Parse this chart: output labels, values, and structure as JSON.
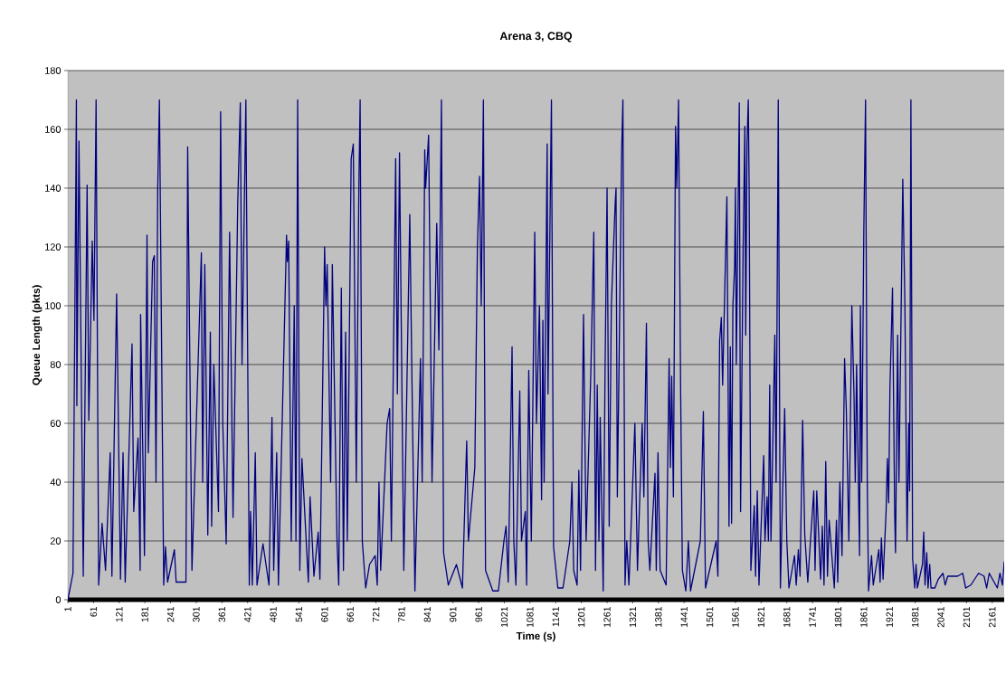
{
  "chart_data": {
    "type": "line",
    "title": "Arena 3, CBQ",
    "xlabel": "Time (s)",
    "ylabel": "Queue Length (pkts)",
    "xlim": [
      1,
      2189
    ],
    "ylim": [
      0,
      180
    ],
    "xticks": [
      1,
      61,
      121,
      181,
      241,
      301,
      361,
      421,
      481,
      541,
      601,
      661,
      721,
      781,
      841,
      901,
      961,
      1021,
      1081,
      1141,
      1201,
      1261,
      1321,
      1381,
      1441,
      1501,
      1561,
      1621,
      1681,
      1741,
      1801,
      1861,
      1921,
      1981,
      2041,
      2101,
      2161
    ],
    "yticks": [
      0,
      20,
      40,
      60,
      80,
      100,
      120,
      140,
      160,
      180
    ],
    "grid": "y",
    "marker": "none",
    "line_style": "solid",
    "series": [
      {
        "color": "#000080",
        "x": [
          1,
          13,
          21,
          22,
          27,
          37,
          46,
          50,
          58,
          62,
          67,
          73,
          81,
          89,
          100,
          104,
          115,
          124,
          130,
          135,
          151,
          155,
          165,
          170,
          171,
          180,
          186,
          189,
          199,
          203,
          207,
          211,
          215,
          225,
          229,
          234,
          250,
          254,
          277,
          281,
          291,
          313,
          316,
          321,
          328,
          334,
          337,
          342,
          353,
          358,
          363,
          371,
          379,
          387,
          398,
          404,
          408,
          417,
          425,
          428,
          432,
          439,
          443,
          457,
          471,
          478,
          482,
          489,
          493,
          505,
          512,
          514,
          517,
          523,
          530,
          534,
          538,
          543,
          548,
          563,
          567,
          576,
          586,
          590,
          601,
          604,
          607,
          615,
          619,
          630,
          634,
          640,
          645,
          650,
          654,
          663,
          668,
          675,
          681,
          684,
          689,
          697,
          706,
          719,
          724,
          728,
          732,
          747,
          753,
          757,
          767,
          771,
          776,
          786,
          800,
          806,
          812,
          825,
          829,
          835,
          837,
          844,
          852,
          863,
          868,
          874,
          879,
          890,
          909,
          923,
          933,
          937,
          952,
          958,
          963,
          967,
          972,
          977,
          994,
          1007,
          1020,
          1025,
          1030,
          1039,
          1043,
          1048,
          1057,
          1061,
          1070,
          1073,
          1078,
          1084,
          1092,
          1096,
          1103,
          1108,
          1111,
          1114,
          1121,
          1123,
          1131,
          1136,
          1146,
          1158,
          1169,
          1174,
          1179,
          1183,
          1191,
          1195,
          1199,
          1206,
          1212,
          1223,
          1230,
          1234,
          1238,
          1242,
          1245,
          1252,
          1256,
          1261,
          1266,
          1271,
          1280,
          1282,
          1285,
          1289,
          1295,
          1298,
          1303,
          1307,
          1312,
          1316,
          1326,
          1332,
          1343,
          1347,
          1353,
          1357,
          1361,
          1373,
          1376,
          1380,
          1385,
          1399,
          1406,
          1409,
          1412,
          1416,
          1421,
          1424,
          1428,
          1433,
          1437,
          1445,
          1451,
          1456,
          1479,
          1486,
          1491,
          1516,
          1520,
          1524,
          1528,
          1531,
          1541,
          1546,
          1549,
          1552,
          1555,
          1559,
          1561,
          1563,
          1570,
          1573,
          1579,
          1583,
          1585,
          1588,
          1591,
          1593,
          1597,
          1605,
          1608,
          1612,
          1616,
          1627,
          1630,
          1635,
          1638,
          1641,
          1644,
          1653,
          1656,
          1661,
          1666,
          1676,
          1681,
          1686,
          1699,
          1703,
          1708,
          1712,
          1718,
          1723,
          1730,
          1744,
          1747,
          1751,
          1760,
          1764,
          1768,
          1772,
          1776,
          1780,
          1792,
          1797,
          1800,
          1805,
          1810,
          1816,
          1820,
          1826,
          1833,
          1838,
          1841,
          1844,
          1851,
          1853,
          1856,
          1861,
          1865,
          1869,
          1872,
          1879,
          1883,
          1896,
          1899,
          1902,
          1906,
          1913,
          1916,
          1919,
          1922,
          1928,
          1933,
          1935,
          1940,
          1943,
          1949,
          1952,
          1957,
          1962,
          1966,
          1968,
          1971,
          1975,
          1980,
          1983,
          1986,
          1998,
          2001,
          2004,
          2008,
          2011,
          2015,
          2018,
          2027,
          2035,
          2046,
          2051,
          2057,
          2069,
          2080,
          2092,
          2099,
          2111,
          2129,
          2142,
          2148,
          2154,
          2173,
          2179,
          2185,
          2189
        ],
        "values": [
          0,
          9,
          170,
          66,
          156,
          8,
          141,
          61,
          122,
          95,
          170,
          5,
          26,
          10,
          50,
          8,
          104,
          7,
          50,
          6,
          87,
          30,
          55,
          10,
          97,
          15,
          124,
          50,
          115,
          117,
          40,
          140,
          170,
          5,
          18,
          6,
          17,
          6,
          6,
          154,
          10,
          118,
          40,
          114,
          22,
          91,
          25,
          80,
          30,
          166,
          60,
          19,
          125,
          28,
          135,
          169,
          80,
          170,
          5,
          30,
          5,
          50,
          5,
          19,
          5,
          62,
          10,
          50,
          5,
          80,
          124,
          115,
          122,
          20,
          100,
          20,
          170,
          10,
          48,
          6,
          35,
          8,
          23,
          7,
          120,
          100,
          114,
          40,
          114,
          20,
          5,
          106,
          10,
          91,
          20,
          150,
          155,
          40,
          140,
          170,
          20,
          4,
          12,
          15,
          5,
          40,
          10,
          60,
          65,
          20,
          150,
          70,
          152,
          10,
          131,
          65,
          3,
          82,
          40,
          153,
          140,
          158,
          40,
          128,
          85,
          170,
          16,
          5,
          12,
          4,
          54,
          20,
          45,
          120,
          144,
          100,
          170,
          10,
          3,
          3,
          20,
          25,
          6,
          86,
          20,
          5,
          71,
          20,
          30,
          5,
          78,
          20,
          125,
          60,
          100,
          34,
          95,
          40,
          155,
          70,
          170,
          18,
          4,
          4,
          15,
          20,
          40,
          10,
          5,
          44,
          10,
          97,
          20,
          77,
          125,
          10,
          73,
          20,
          62,
          3,
          73,
          140,
          25,
          100,
          135,
          140,
          35,
          80,
          152,
          170,
          5,
          20,
          5,
          20,
          60,
          10,
          60,
          35,
          94,
          20,
          10,
          43,
          10,
          50,
          10,
          5,
          82,
          45,
          76,
          35,
          161,
          140,
          170,
          70,
          10,
          3,
          20,
          3,
          20,
          64,
          4,
          20,
          8,
          88,
          96,
          73,
          137,
          25,
          86,
          26,
          100,
          113,
          140,
          80,
          169,
          30,
          120,
          161,
          90,
          155,
          170,
          140,
          10,
          32,
          8,
          37,
          5,
          49,
          20,
          35,
          20,
          73,
          20,
          90,
          40,
          170,
          4,
          65,
          20,
          4,
          15,
          5,
          17,
          8,
          61,
          22,
          6,
          37,
          10,
          37,
          7,
          25,
          5,
          47,
          8,
          27,
          4,
          27,
          6,
          40,
          15,
          82,
          65,
          20,
          100,
          70,
          40,
          80,
          15,
          100,
          40,
          126,
          170,
          40,
          3,
          15,
          5,
          17,
          6,
          21,
          7,
          30,
          48,
          33,
          72,
          106,
          30,
          16,
          90,
          40,
          108,
          143,
          100,
          20,
          60,
          37,
          170,
          14,
          4,
          12,
          4,
          12,
          23,
          5,
          16,
          4,
          12,
          4,
          4,
          7,
          9,
          5,
          8,
          8,
          8,
          9,
          4,
          5,
          9,
          8,
          4,
          9,
          4,
          9,
          5,
          13
        ]
      }
    ]
  }
}
